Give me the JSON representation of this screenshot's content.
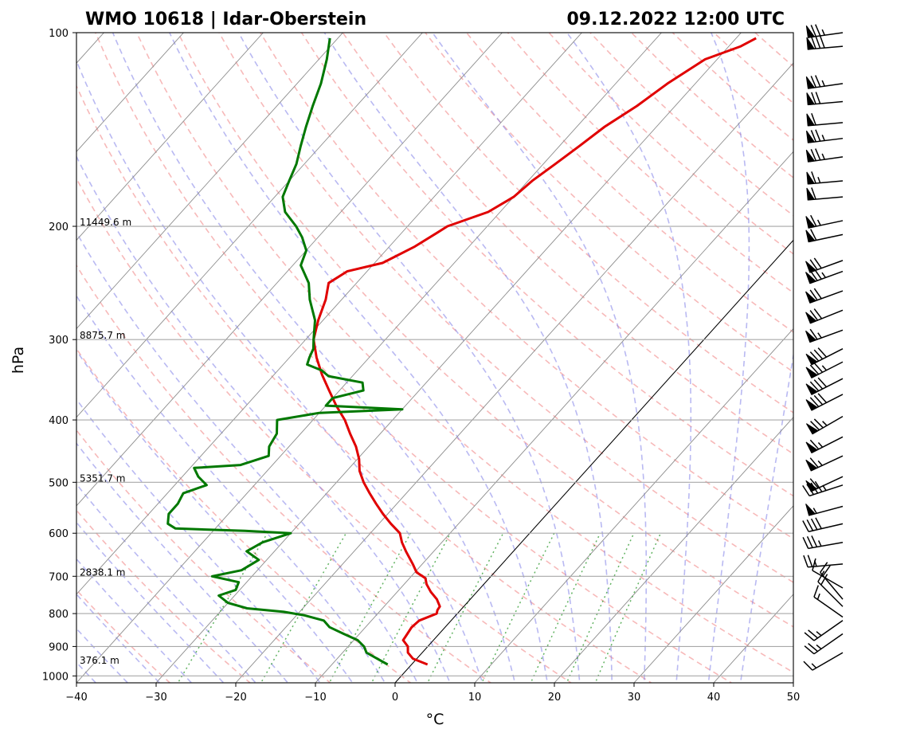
{
  "chart_data": {
    "type": "line",
    "diagram": "Skew-T log-P",
    "title_left": "WMO 10618 | Idar-Oberstein",
    "title_right": "09.12.2022 12:00 UTC",
    "xlabel": "°C",
    "ylabel": "hPa",
    "xlim": [
      -40,
      50
    ],
    "ylim": [
      1025,
      100
    ],
    "x_ticks": [
      "−40",
      "−30",
      "−20",
      "−10",
      "0",
      "10",
      "20",
      "30",
      "40",
      "50"
    ],
    "x_tick_values": [
      -40,
      -30,
      -20,
      -10,
      0,
      10,
      20,
      30,
      40,
      50
    ],
    "y_ticks": [
      "100",
      "200",
      "300",
      "400",
      "500",
      "600",
      "700",
      "800",
      "900",
      "1000"
    ],
    "y_tick_values": [
      100,
      200,
      300,
      400,
      500,
      600,
      700,
      800,
      900,
      1000
    ],
    "grid": true,
    "height_labels": [
      {
        "p": 200,
        "text": "11449.6 m"
      },
      {
        "p": 300,
        "text": "8875.7 m"
      },
      {
        "p": 500,
        "text": "5351.7 m"
      },
      {
        "p": 700,
        "text": "2838.1 m"
      },
      {
        "p": 960,
        "text": "376.1 m"
      }
    ],
    "series": [
      {
        "name": "Temperature",
        "color": "#e00000",
        "points": [
          [
            960,
            2.0
          ],
          [
            940,
            -0.5
          ],
          [
            920,
            -1.8
          ],
          [
            900,
            -2.5
          ],
          [
            880,
            -3.8
          ],
          [
            860,
            -4.0
          ],
          [
            840,
            -4.2
          ],
          [
            820,
            -4.0
          ],
          [
            800,
            -2.6
          ],
          [
            790,
            -2.9
          ],
          [
            780,
            -3.0
          ],
          [
            760,
            -4.2
          ],
          [
            740,
            -5.8
          ],
          [
            720,
            -7.2
          ],
          [
            705,
            -8.0
          ],
          [
            690,
            -9.8
          ],
          [
            670,
            -11.2
          ],
          [
            640,
            -13.5
          ],
          [
            620,
            -15.0
          ],
          [
            600,
            -16.3
          ],
          [
            580,
            -18.5
          ],
          [
            560,
            -20.6
          ],
          [
            540,
            -22.6
          ],
          [
            520,
            -24.6
          ],
          [
            500,
            -26.6
          ],
          [
            480,
            -28.4
          ],
          [
            460,
            -29.8
          ],
          [
            440,
            -31.6
          ],
          [
            420,
            -33.8
          ],
          [
            400,
            -36.0
          ],
          [
            380,
            -38.7
          ],
          [
            360,
            -41.3
          ],
          [
            340,
            -44.0
          ],
          [
            320,
            -46.6
          ],
          [
            300,
            -49.0
          ],
          [
            280,
            -50.6
          ],
          [
            260,
            -52.0
          ],
          [
            245,
            -53.5
          ],
          [
            235,
            -52.5
          ],
          [
            228,
            -49.0
          ],
          [
            215,
            -46.8
          ],
          [
            205,
            -45.6
          ],
          [
            200,
            -45.0
          ],
          [
            190,
            -41.5
          ],
          [
            180,
            -40.0
          ],
          [
            170,
            -39.5
          ],
          [
            160,
            -38.5
          ],
          [
            150,
            -37.5
          ],
          [
            140,
            -36.5
          ],
          [
            130,
            -34.8
          ],
          [
            120,
            -33.5
          ],
          [
            110,
            -31.5
          ],
          [
            105,
            -28.5
          ],
          [
            102,
            -27.5
          ]
        ]
      },
      {
        "name": "Dewpoint",
        "color": "#007800",
        "points": [
          [
            960,
            -3.0
          ],
          [
            940,
            -5.0
          ],
          [
            920,
            -7.0
          ],
          [
            900,
            -8.0
          ],
          [
            880,
            -9.5
          ],
          [
            860,
            -12.0
          ],
          [
            840,
            -14.5
          ],
          [
            820,
            -16.0
          ],
          [
            805,
            -19.0
          ],
          [
            795,
            -22.0
          ],
          [
            785,
            -27.0
          ],
          [
            770,
            -30.0
          ],
          [
            750,
            -32.0
          ],
          [
            735,
            -30.5
          ],
          [
            715,
            -31.0
          ],
          [
            700,
            -35.0
          ],
          [
            685,
            -32.0
          ],
          [
            660,
            -31.0
          ],
          [
            640,
            -33.5
          ],
          [
            620,
            -32.5
          ],
          [
            600,
            -30.0
          ],
          [
            595,
            -36.0
          ],
          [
            590,
            -45.0
          ],
          [
            580,
            -46.5
          ],
          [
            560,
            -47.5
          ],
          [
            540,
            -47.5
          ],
          [
            520,
            -48.0
          ],
          [
            505,
            -46.0
          ],
          [
            490,
            -48.0
          ],
          [
            475,
            -49.5
          ],
          [
            470,
            -44.0
          ],
          [
            455,
            -41.5
          ],
          [
            440,
            -42.5
          ],
          [
            420,
            -43.0
          ],
          [
            400,
            -44.5
          ],
          [
            390,
            -40.0
          ],
          [
            385,
            -30.0
          ],
          [
            380,
            -40.0
          ],
          [
            370,
            -40.0
          ],
          [
            360,
            -37.0
          ],
          [
            350,
            -38.0
          ],
          [
            342,
            -43.0
          ],
          [
            335,
            -44.5
          ],
          [
            328,
            -47.0
          ],
          [
            320,
            -47.5
          ],
          [
            310,
            -48.0
          ],
          [
            300,
            -49.0
          ],
          [
            280,
            -51.0
          ],
          [
            260,
            -54.0
          ],
          [
            245,
            -56.0
          ],
          [
            230,
            -59.0
          ],
          [
            218,
            -60.0
          ],
          [
            208,
            -62.0
          ],
          [
            200,
            -64.0
          ],
          [
            190,
            -67.0
          ],
          [
            180,
            -69.0
          ],
          [
            170,
            -70.0
          ],
          [
            160,
            -71.0
          ],
          [
            150,
            -72.5
          ],
          [
            140,
            -74.0
          ],
          [
            130,
            -75.5
          ],
          [
            120,
            -77.0
          ],
          [
            110,
            -79.0
          ],
          [
            102,
            -81.0
          ]
        ]
      },
      {
        "name": "0 °C isotherm",
        "color": "#000000"
      }
    ],
    "wind_barbs": [
      {
        "p": 100,
        "dir": 262,
        "kt": 75
      },
      {
        "p": 105,
        "dir": 265,
        "kt": 80
      },
      {
        "p": 120,
        "dir": 262,
        "kt": 75
      },
      {
        "p": 128,
        "dir": 265,
        "kt": 70
      },
      {
        "p": 138,
        "dir": 265,
        "kt": 60
      },
      {
        "p": 146,
        "dir": 263,
        "kt": 75
      },
      {
        "p": 156,
        "dir": 262,
        "kt": 75
      },
      {
        "p": 170,
        "dir": 265,
        "kt": 65
      },
      {
        "p": 180,
        "dir": 265,
        "kt": 60
      },
      {
        "p": 196,
        "dir": 258,
        "kt": 65
      },
      {
        "p": 206,
        "dir": 258,
        "kt": 60
      },
      {
        "p": 226,
        "dir": 250,
        "kt": 70
      },
      {
        "p": 235,
        "dir": 250,
        "kt": 75
      },
      {
        "p": 252,
        "dir": 250,
        "kt": 70
      },
      {
        "p": 270,
        "dir": 248,
        "kt": 70
      },
      {
        "p": 290,
        "dir": 250,
        "kt": 65
      },
      {
        "p": 310,
        "dir": 243,
        "kt": 80
      },
      {
        "p": 325,
        "dir": 243,
        "kt": 75
      },
      {
        "p": 345,
        "dir": 243,
        "kt": 80
      },
      {
        "p": 365,
        "dir": 243,
        "kt": 80
      },
      {
        "p": 395,
        "dir": 240,
        "kt": 75
      },
      {
        "p": 425,
        "dir": 243,
        "kt": 65
      },
      {
        "p": 455,
        "dir": 245,
        "kt": 65
      },
      {
        "p": 490,
        "dir": 245,
        "kt": 60
      },
      {
        "p": 505,
        "dir": 252,
        "kt": 45
      },
      {
        "p": 545,
        "dir": 255,
        "kt": 55
      },
      {
        "p": 580,
        "dir": 257,
        "kt": 40
      },
      {
        "p": 620,
        "dir": 260,
        "kt": 35
      },
      {
        "p": 670,
        "dir": 265,
        "kt": 25
      },
      {
        "p": 730,
        "dir": 300,
        "kt": 10
      },
      {
        "p": 760,
        "dir": 320,
        "kt": 20
      },
      {
        "p": 780,
        "dir": 315,
        "kt": 20
      },
      {
        "p": 810,
        "dir": 305,
        "kt": 15
      },
      {
        "p": 820,
        "dir": 235,
        "kt": 25
      },
      {
        "p": 860,
        "dir": 235,
        "kt": 25
      },
      {
        "p": 920,
        "dir": 240,
        "kt": 15
      }
    ]
  }
}
